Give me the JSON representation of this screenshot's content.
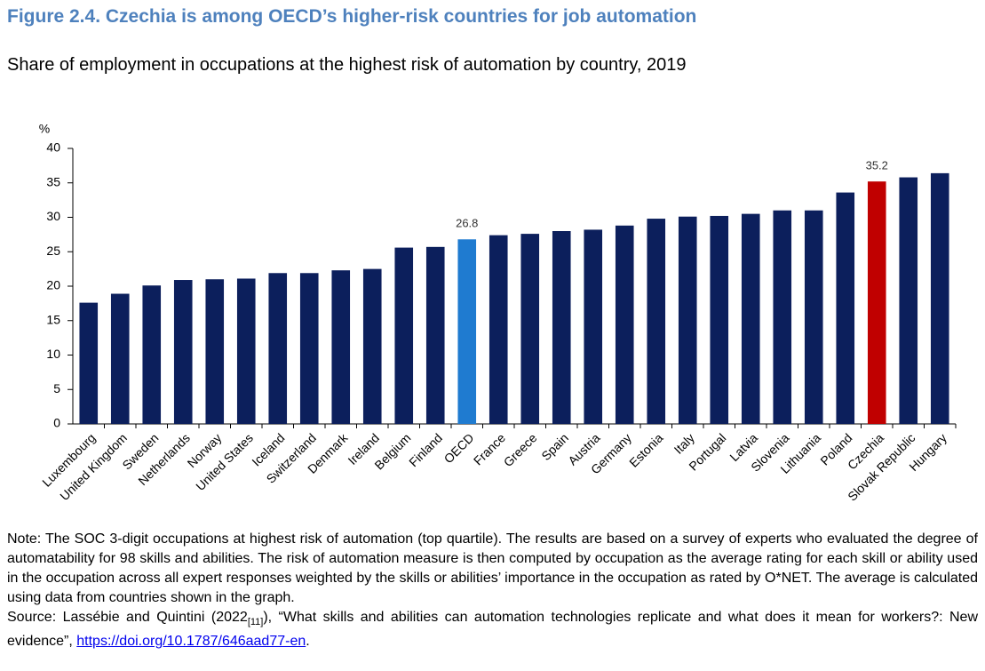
{
  "chart_data": {
    "type": "bar",
    "title": "Figure 2.4. Czechia is among OECD’s higher-risk countries for job automation",
    "subtitle": "Share of employment in occupations at the highest risk of automation by country, 2019",
    "y_label": "%",
    "categories": [
      "Luxembourg",
      "United Kingdom",
      "Sweden",
      "Netherlands",
      "Norway",
      "United States",
      "Iceland",
      "Switzerland",
      "Denmark",
      "Ireland",
      "Belgium",
      "Finland",
      "OECD",
      "France",
      "Greece",
      "Spain",
      "Austria",
      "Germany",
      "Estonia",
      "Italy",
      "Portugal",
      "Latvia",
      "Slovenia",
      "Lithuania",
      "Poland",
      "Czechia",
      "Slovak Republic",
      "Hungary"
    ],
    "values": [
      17.6,
      18.9,
      20.1,
      20.9,
      21.0,
      21.1,
      21.9,
      21.9,
      22.3,
      22.5,
      25.6,
      25.7,
      26.8,
      27.4,
      27.6,
      28.0,
      28.2,
      28.8,
      29.8,
      30.1,
      30.2,
      30.5,
      31.0,
      31.0,
      33.6,
      35.2,
      35.8,
      36.4
    ],
    "value_labels": [
      null,
      null,
      null,
      null,
      null,
      null,
      null,
      null,
      null,
      null,
      null,
      null,
      "26.8",
      null,
      null,
      null,
      null,
      null,
      null,
      null,
      null,
      null,
      null,
      null,
      null,
      "35.2",
      null,
      null
    ],
    "colors": [
      "#0c1f5c",
      "#0c1f5c",
      "#0c1f5c",
      "#0c1f5c",
      "#0c1f5c",
      "#0c1f5c",
      "#0c1f5c",
      "#0c1f5c",
      "#0c1f5c",
      "#0c1f5c",
      "#0c1f5c",
      "#0c1f5c",
      "#1f7bd0",
      "#0c1f5c",
      "#0c1f5c",
      "#0c1f5c",
      "#0c1f5c",
      "#0c1f5c",
      "#0c1f5c",
      "#0c1f5c",
      "#0c1f5c",
      "#0c1f5c",
      "#0c1f5c",
      "#0c1f5c",
      "#0c1f5c",
      "#c00000",
      "#0c1f5c",
      "#0c1f5c"
    ],
    "ylim": [
      0,
      40
    ],
    "yticks": [
      0,
      5,
      10,
      15,
      20,
      25,
      30,
      35,
      40
    ],
    "grid": false
  },
  "notes": {
    "note": "Note: The SOC 3-digit occupations at highest risk of automation (top quartile). The results are based on a survey of experts who evaluated the degree of automatability for 98 skills and abilities. The risk of automation measure is then computed by occupation as the average rating for each skill or ability used in the occupation across all expert responses weighted by the skills or abilities’ importance in the occupation as rated by O*NET. The average is calculated using data from countries shown in the graph.",
    "source_prefix": "Source: Lassébie and Quintini (2022",
    "source_ref": "[11]",
    "source_mid": "), “What skills and abilities can automation technologies replicate and what does it mean for workers?: New evidence”, ",
    "source_link": "https://doi.org/10.1787/646aad77-en",
    "source_end": "."
  }
}
